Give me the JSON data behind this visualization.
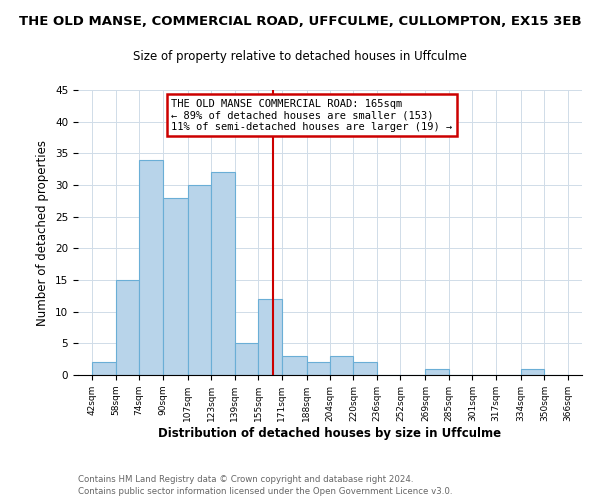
{
  "title": "THE OLD MANSE, COMMERCIAL ROAD, UFFCULME, CULLOMPTON, EX15 3EB",
  "subtitle": "Size of property relative to detached houses in Uffculme",
  "xlabel": "Distribution of detached houses by size in Uffculme",
  "ylabel": "Number of detached properties",
  "bin_edges": [
    42,
    58,
    74,
    90,
    107,
    123,
    139,
    155,
    171,
    188,
    204,
    220,
    236,
    252,
    269,
    285,
    301,
    317,
    334,
    350,
    366
  ],
  "bin_labels": [
    "42sqm",
    "58sqm",
    "74sqm",
    "90sqm",
    "107sqm",
    "123sqm",
    "139sqm",
    "155sqm",
    "171sqm",
    "188sqm",
    "204sqm",
    "220sqm",
    "236sqm",
    "252sqm",
    "269sqm",
    "285sqm",
    "301sqm",
    "317sqm",
    "334sqm",
    "350sqm",
    "366sqm"
  ],
  "counts": [
    2,
    15,
    34,
    28,
    30,
    32,
    5,
    12,
    3,
    2,
    3,
    2,
    0,
    0,
    1,
    0,
    0,
    0,
    1,
    0
  ],
  "bar_color": "#b8d4ea",
  "bar_edge_color": "#6aaed6",
  "reference_line_x": 165,
  "reference_line_color": "#cc0000",
  "annotation_line1": "THE OLD MANSE COMMERCIAL ROAD: 165sqm",
  "annotation_line2": "← 89% of detached houses are smaller (153)",
  "annotation_line3": "11% of semi-detached houses are larger (19) →",
  "annotation_box_color": "#ffffff",
  "annotation_box_edge_color": "#cc0000",
  "ylim": [
    0,
    45
  ],
  "yticks": [
    0,
    5,
    10,
    15,
    20,
    25,
    30,
    35,
    40,
    45
  ],
  "footer_line1": "Contains HM Land Registry data © Crown copyright and database right 2024.",
  "footer_line2": "Contains public sector information licensed under the Open Government Licence v3.0.",
  "background_color": "#ffffff",
  "grid_color": "#d0dce8"
}
